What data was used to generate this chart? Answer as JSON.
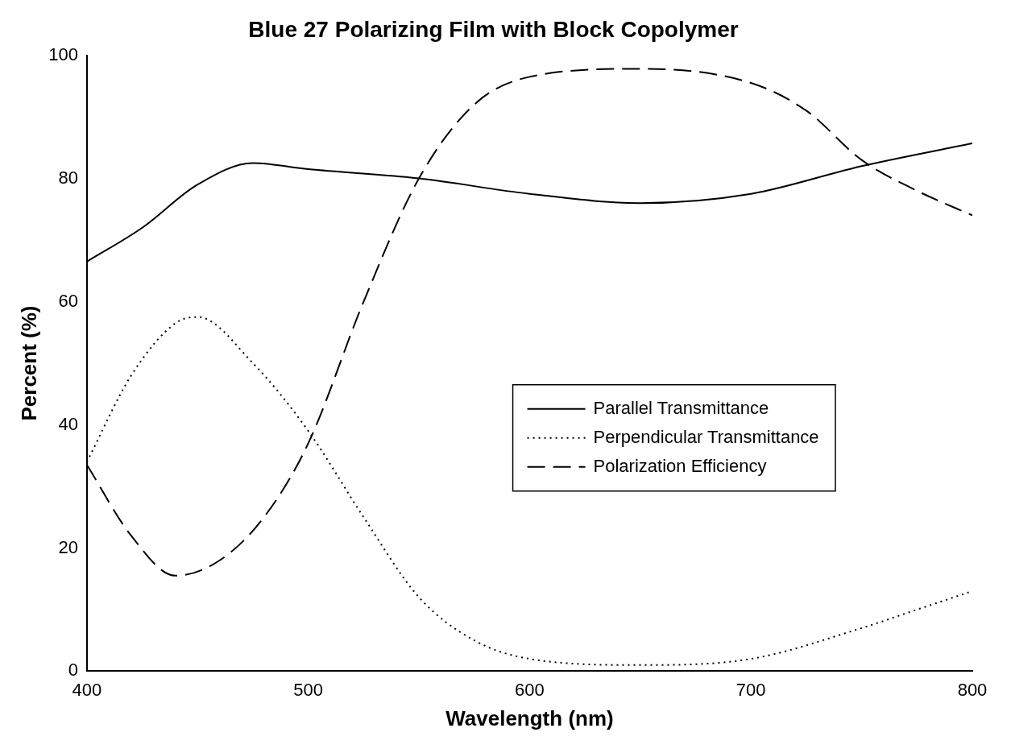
{
  "chart_data": {
    "type": "line",
    "title": "Blue 27 Polarizing Film with Block Copolymer",
    "xlabel": "Wavelength (nm)",
    "ylabel": "Percent (%)",
    "xlim": [
      400,
      800
    ],
    "xticks": [
      400,
      500,
      600,
      700,
      800
    ],
    "ylim": [
      0,
      100
    ],
    "yticks": [
      0,
      20,
      40,
      60,
      80,
      100
    ],
    "grid": false,
    "legend": "right",
    "marker": "none",
    "series": [
      {
        "name": "Parallel Transmittance",
        "color": "#000000",
        "line_style": "solid",
        "x": [
          400,
          425,
          450,
          475,
          500,
          550,
          600,
          650,
          700,
          750,
          800
        ],
        "values": [
          66.5,
          72,
          79,
          82.5,
          81.5,
          80,
          77.5,
          76,
          77.5,
          82,
          85.7
        ]
      },
      {
        "name": "Perpendicular Transmittance",
        "color": "#000000",
        "line_style": "dotted",
        "x": [
          400,
          420,
          440,
          450,
          475,
          500,
          525,
          550,
          575,
          600,
          650,
          700,
          750,
          775,
          800
        ],
        "values": [
          34,
          48,
          56.5,
          57.5,
          50,
          39,
          25,
          12,
          5,
          2,
          1,
          2,
          7,
          10,
          13
        ]
      },
      {
        "name": "Polarization Efficiency",
        "color": "#000000",
        "line_style": "dashed",
        "x": [
          400,
          420,
          440,
          460,
          480,
          500,
          525,
          550,
          575,
          600,
          650,
          700,
          725,
          750,
          775,
          800
        ],
        "values": [
          33.5,
          22,
          15.5,
          18,
          25,
          37,
          60,
          80,
          92,
          96.5,
          97.8,
          95.5,
          91,
          83,
          78,
          74
        ]
      }
    ]
  }
}
